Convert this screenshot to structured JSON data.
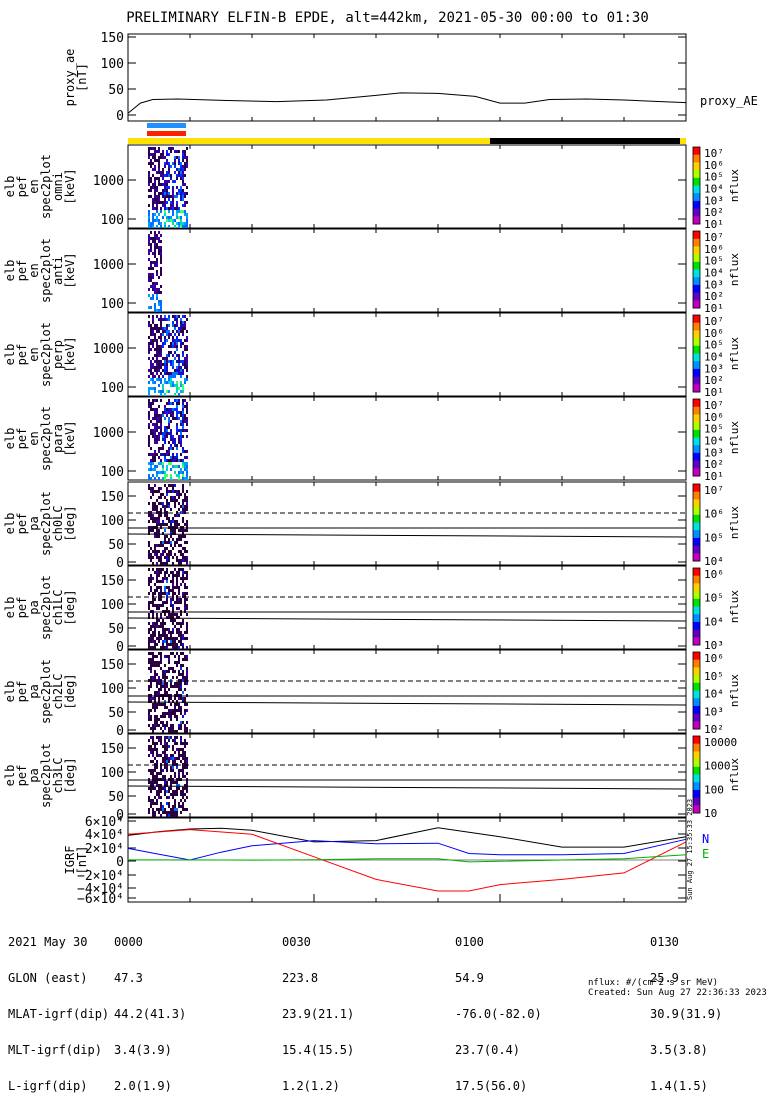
{
  "title": "PRELIMINARY ELFIN-B EPDE, alt=442km, 2021-05-30 00:00 to 01:30",
  "panels": [
    {
      "id": "proxy_ae",
      "ylabel": [
        "proxy_ae",
        "[nT]"
      ],
      "yticks": [
        "150",
        "100",
        "50",
        "0"
      ],
      "legend": "proxy_AE"
    },
    {
      "id": "en_omni",
      "ylabel": [
        "elb",
        "pef",
        "en",
        "spec2plot",
        "omni",
        "[keV]"
      ],
      "yticks": [
        "1000",
        "100"
      ],
      "colorbar_label": "nflux",
      "colorbar_ticks": [
        "10⁷",
        "10⁶",
        "10⁵",
        "10⁴",
        "10³",
        "10²",
        "10¹"
      ]
    },
    {
      "id": "en_anti",
      "ylabel": [
        "elb",
        "pef",
        "en",
        "spec2plot",
        "anti",
        "[keV]"
      ],
      "yticks": [
        "1000",
        "100"
      ],
      "colorbar_label": "nflux",
      "colorbar_ticks": [
        "10⁷",
        "10⁶",
        "10⁵",
        "10⁴",
        "10³",
        "10²",
        "10¹"
      ]
    },
    {
      "id": "en_perp",
      "ylabel": [
        "elb",
        "pef",
        "en",
        "spec2plot",
        "perp",
        "[keV]"
      ],
      "yticks": [
        "1000",
        "100"
      ],
      "colorbar_label": "nflux",
      "colorbar_ticks": [
        "10⁷",
        "10⁶",
        "10⁵",
        "10⁴",
        "10³",
        "10²",
        "10¹"
      ]
    },
    {
      "id": "en_para",
      "ylabel": [
        "elb",
        "pef",
        "en",
        "spec2plot",
        "para",
        "[keV]"
      ],
      "yticks": [
        "1000",
        "100"
      ],
      "colorbar_label": "nflux",
      "colorbar_ticks": [
        "10⁷",
        "10⁶",
        "10⁵",
        "10⁴",
        "10³",
        "10²",
        "10¹"
      ]
    },
    {
      "id": "pa_ch0",
      "ylabel": [
        "elb",
        "pef",
        "pa",
        "spec2plot",
        "ch0LC",
        "[deg]"
      ],
      "yticks": [
        "150",
        "100",
        "50",
        "0"
      ],
      "colorbar_label": "nflux",
      "colorbar_ticks": [
        "10⁷",
        "10⁶",
        "10⁵",
        "10⁴"
      ]
    },
    {
      "id": "pa_ch1",
      "ylabel": [
        "elb",
        "pef",
        "pa",
        "spec2plot",
        "ch1LC",
        "[deg]"
      ],
      "yticks": [
        "150",
        "100",
        "50",
        "0"
      ],
      "colorbar_label": "nflux",
      "colorbar_ticks": [
        "10⁶",
        "10⁵",
        "10⁴",
        "10³"
      ]
    },
    {
      "id": "pa_ch2",
      "ylabel": [
        "elb",
        "pef",
        "pa",
        "spec2plot",
        "ch2LC",
        "[deg]"
      ],
      "yticks": [
        "150",
        "100",
        "50",
        "0"
      ],
      "colorbar_label": "nflux",
      "colorbar_ticks": [
        "10⁶",
        "10⁵",
        "10⁴",
        "10³",
        "10²"
      ]
    },
    {
      "id": "pa_ch3",
      "ylabel": [
        "elb",
        "pef",
        "pa",
        "spec2plot",
        "ch3LC",
        "[deg]"
      ],
      "yticks": [
        "150",
        "100",
        "50",
        "0"
      ],
      "colorbar_label": "nflux",
      "colorbar_ticks": [
        "10000",
        "1000",
        "100",
        "10"
      ]
    },
    {
      "id": "igrf",
      "ylabel": [
        "IGRF",
        "[nT]"
      ],
      "yticks": [
        "6×10⁴",
        "4×10⁴",
        "2×10⁴",
        "0",
        "−2×10⁴",
        "−4×10⁴",
        "−6×10⁴"
      ],
      "legend": [
        "N",
        "E"
      ]
    }
  ],
  "chart_data": {
    "type": "line",
    "x_axis_ticks": [
      "0000",
      "0030",
      "0100",
      "0130"
    ],
    "xlim_minutes": [
      0,
      90
    ],
    "proxy_ae": {
      "x": [
        0,
        2,
        4,
        8,
        16,
        24,
        32,
        40,
        44,
        50,
        56,
        60,
        64,
        68,
        74,
        80,
        86,
        90
      ],
      "y": [
        5,
        25,
        32,
        33,
        30,
        28,
        31,
        40,
        45,
        44,
        38,
        25,
        25,
        32,
        33,
        31,
        28,
        26
      ],
      "ylim": [
        -10,
        160
      ]
    },
    "igrf": {
      "ylim_nT": [
        -65000,
        65000
      ],
      "series": [
        {
          "color": "#000000",
          "x": [
            0,
            5,
            10,
            15,
            20,
            30,
            40,
            50,
            60,
            70,
            80,
            90
          ],
          "y": [
            38000,
            44000,
            48000,
            49000,
            46000,
            28000,
            30000,
            50000,
            36000,
            20000,
            20000,
            36000
          ]
        },
        {
          "color": "#0000ff",
          "x": [
            0,
            5,
            10,
            15,
            20,
            30,
            40,
            50,
            55,
            60,
            70,
            80,
            90
          ],
          "y": [
            18000,
            9000,
            0,
            12000,
            22000,
            30000,
            25000,
            26000,
            10000,
            8000,
            8000,
            10000,
            32000
          ]
        },
        {
          "color": "#ff0000",
          "x": [
            0,
            10,
            20,
            30,
            40,
            50,
            55,
            60,
            70,
            80,
            90
          ],
          "y": [
            40000,
            47000,
            40000,
            5000,
            -30000,
            -48000,
            -48000,
            -38000,
            -30000,
            -20000,
            28000
          ]
        },
        {
          "color": "#00b000",
          "x": [
            0,
            10,
            20,
            30,
            40,
            50,
            55,
            60,
            70,
            80,
            90
          ],
          "y": [
            100,
            100,
            -200,
            500,
            2000,
            2000,
            -3000,
            -2000,
            0,
            2000,
            8000
          ]
        }
      ]
    }
  },
  "time_footer": {
    "rows": [
      {
        "label": "2021 May 30",
        "values": [
          "0000",
          "0030",
          "0100",
          "0130"
        ]
      },
      {
        "label": "GLON (east)",
        "values": [
          "47.3",
          "223.8",
          "54.9",
          "25.9"
        ]
      },
      {
        "label": "MLAT-igrf(dip)",
        "values": [
          "44.2(41.3)",
          "23.9(21.1)",
          "-76.0(-82.0)",
          "30.9(31.9)"
        ]
      },
      {
        "label": "MLT-igrf(dip)",
        "values": [
          "3.4(3.9)",
          "15.4(15.5)",
          "23.7(0.4)",
          "3.5(3.8)"
        ]
      },
      {
        "label": "L-igrf(dip)",
        "values": [
          "2.0(1.9)",
          "1.2(1.2)",
          "17.5(56.0)",
          "1.4(1.5)"
        ]
      }
    ]
  },
  "side_stamp": "Sun Aug 27 15:35:33 2023",
  "units_note": "nflux: #/(cm^2 s sr MeV)",
  "created": "Created: Sun Aug 27 22:36:33 2023",
  "colors": {
    "state_bar_yellow": "#ffe000",
    "state_bar_black": "#000000",
    "flag_blue": "#1e90ff",
    "flag_red": "#ff2000"
  }
}
